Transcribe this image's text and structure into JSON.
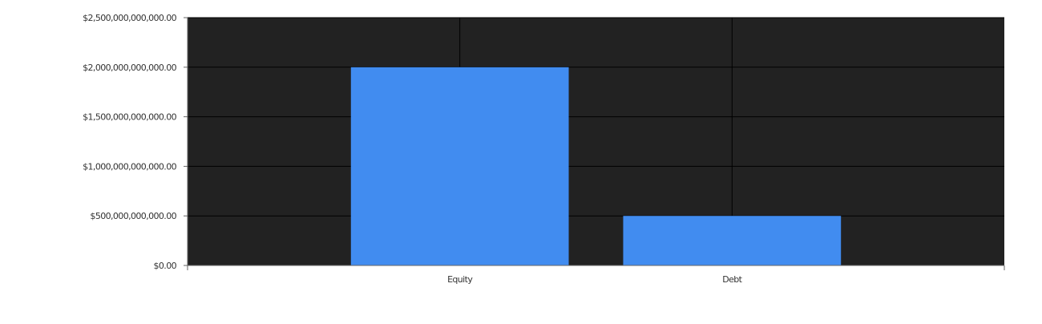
{
  "chart_data": {
    "type": "bar",
    "categories": [
      "Equity",
      "Debt"
    ],
    "values": [
      2000000000000,
      500000000000
    ],
    "ylim": [
      0,
      2500000000000
    ],
    "yticks": [
      0,
      500000000000,
      1000000000000,
      1500000000000,
      2000000000000,
      2500000000000
    ],
    "ytick_labels": [
      "$0.00",
      "$500,000,000,000.00",
      "$1,000,000,000,000.00",
      "$1,500,000,000,000.00",
      "$2,000,000,000,000.00",
      "$2,500,000,000,000.00"
    ],
    "grid": true,
    "legend": "none",
    "colors": {
      "bar": "#418cf0",
      "plot_background": "#222222",
      "grid": "#000000",
      "page_background": "#ffffff"
    }
  }
}
